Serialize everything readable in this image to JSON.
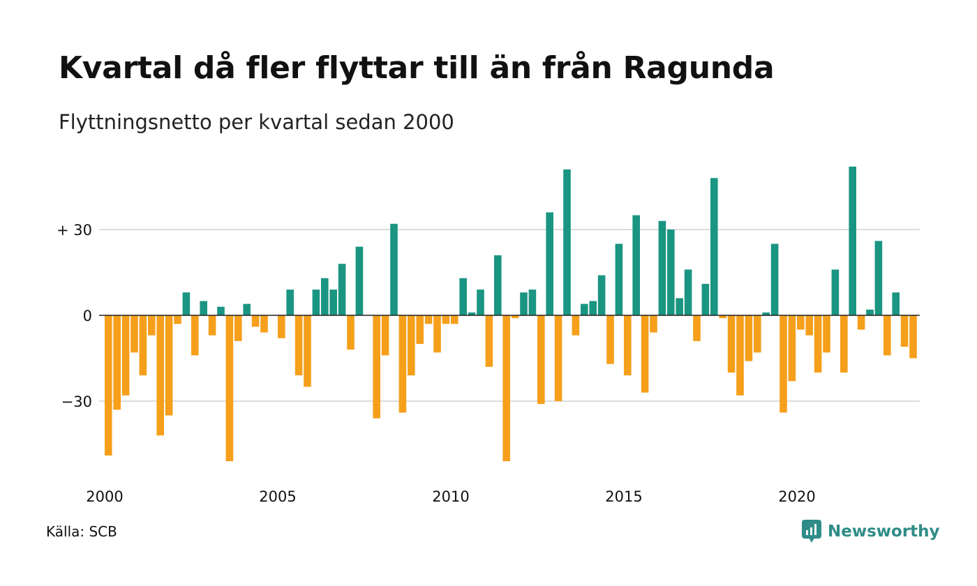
{
  "header": {
    "title": "Kvartal då fler flyttar till än från Ragunda",
    "subtitle": "Flyttningsnetto per kvartal sedan 2000"
  },
  "footer": {
    "source": "Källa: SCB",
    "brand": "Newsworthy",
    "brand_icon": "chart-bubble-icon"
  },
  "colors": {
    "positive": "#1a9582",
    "negative": "#f59f1b",
    "grid": "#dcdcdc",
    "zero_line": "#222222",
    "brand": "#2f8c86"
  },
  "chart_data": {
    "type": "bar",
    "title": "Kvartal då fler flyttar till än från Ragunda",
    "subtitle": "Flyttningsnetto per kvartal sedan 2000",
    "x_start_year": 2000,
    "periods_per_year": 4,
    "x_ticks": [
      "2000",
      "2005",
      "2010",
      "2015",
      "2020"
    ],
    "y_ticks": [
      {
        "value": 30,
        "label": "+ 30"
      },
      {
        "value": 0,
        "label": "0"
      },
      {
        "value": -30,
        "label": "−30"
      }
    ],
    "ylim": [
      -52,
      52
    ],
    "grid": true,
    "legend": "none",
    "values": [
      -49,
      -33,
      -28,
      -13,
      -21,
      -7,
      -42,
      -35,
      -3,
      8,
      -14,
      5,
      -7,
      3,
      -51,
      -9,
      4,
      -4,
      -6,
      0,
      -8,
      9,
      -21,
      -25,
      9,
      13,
      9,
      18,
      -12,
      24,
      0,
      -36,
      -14,
      32,
      -34,
      -21,
      -10,
      -3,
      -13,
      -3,
      -3,
      13,
      1,
      9,
      -18,
      21,
      -51,
      -1,
      8,
      9,
      -31,
      36,
      -30,
      51,
      -7,
      4,
      5,
      14,
      -17,
      25,
      -21,
      35,
      -27,
      -6,
      33,
      30,
      6,
      16,
      -9,
      11,
      48,
      -1,
      -20,
      -28,
      -16,
      -13,
      1,
      25,
      -34,
      -23,
      -5,
      -7,
      -20,
      -13,
      16,
      -20,
      52,
      -5,
      2,
      26,
      -14,
      8,
      -11,
      -15
    ]
  }
}
